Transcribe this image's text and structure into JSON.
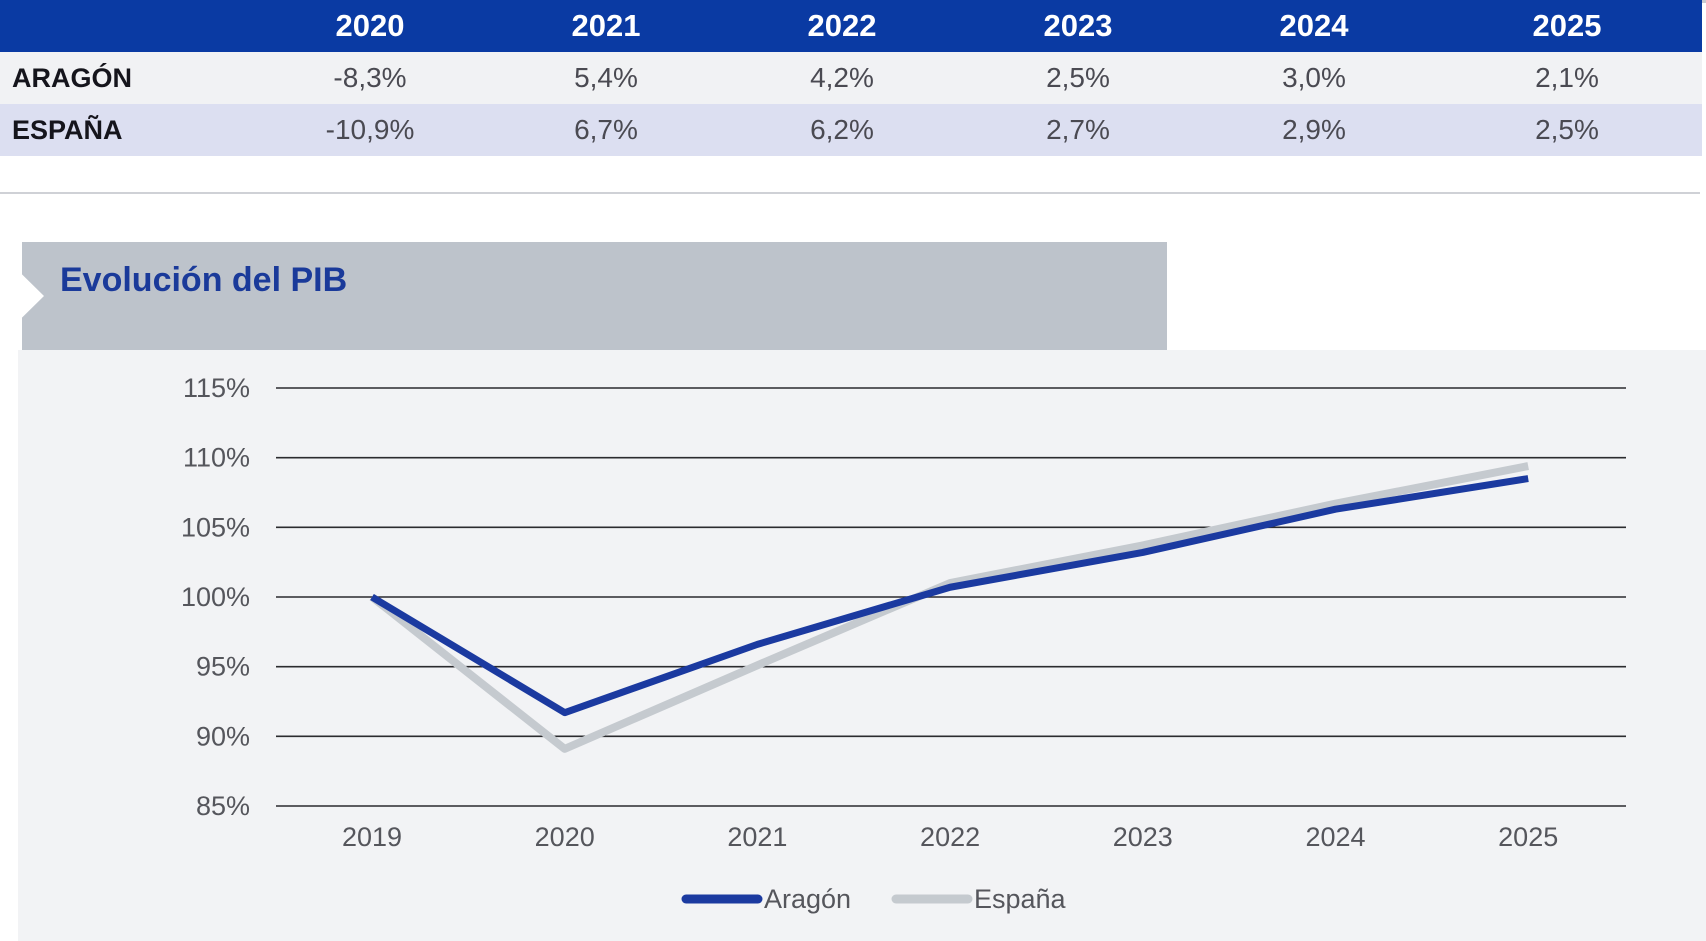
{
  "table": {
    "corner": "",
    "years": [
      "2020",
      "2021",
      "2022",
      "2023",
      "2024",
      "2025"
    ],
    "rows": [
      {
        "label": "ARAGÓN",
        "values": [
          "-8,3%",
          "5,4%",
          "4,2%",
          "2,5%",
          "3,0%",
          "2,1%"
        ]
      },
      {
        "label": "ESPAÑA",
        "values": [
          "-10,9%",
          "6,7%",
          "6,2%",
          "2,7%",
          "2,9%",
          "2,5%"
        ]
      }
    ]
  },
  "chart_title": "Evolución del PIB",
  "colors": {
    "header_blue": "#0a3aa3",
    "aragon_line": "#1b3aa0",
    "espana_line": "#c5cacf",
    "title_text": "#1a3a9a",
    "banner_bg": "#bdc3cb",
    "chart_bg": "#f2f3f5"
  },
  "chart_data": {
    "type": "line",
    "title": "Evolución del PIB",
    "x": [
      "2019",
      "2020",
      "2021",
      "2022",
      "2023",
      "2024",
      "2025"
    ],
    "series": [
      {
        "name": "Aragón",
        "values": [
          100.0,
          91.7,
          96.6,
          100.7,
          103.2,
          106.3,
          108.5
        ]
      },
      {
        "name": "España",
        "values": [
          100.0,
          89.1,
          95.1,
          101.0,
          103.7,
          106.7,
          109.4
        ]
      }
    ],
    "ylim": [
      85,
      115
    ],
    "yticks": [
      115,
      110,
      105,
      100,
      95,
      90,
      85
    ],
    "ytick_labels": [
      "115%",
      "110%",
      "105%",
      "100%",
      "95%",
      "90%",
      "85%"
    ],
    "xlabel": "",
    "ylabel": "",
    "grid": "horizontal",
    "legend_position": "bottom-center"
  }
}
